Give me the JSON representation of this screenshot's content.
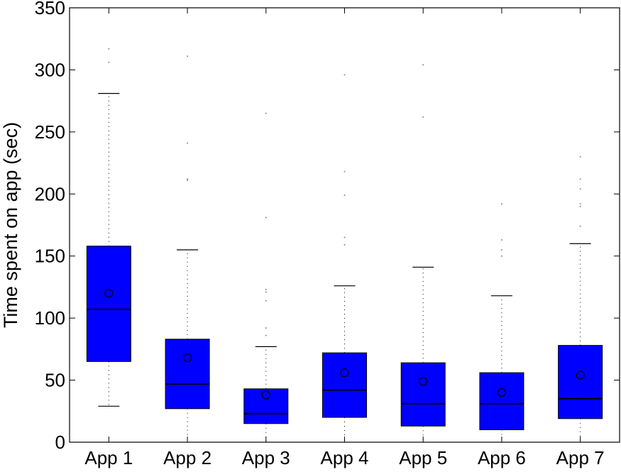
{
  "chart_data": {
    "type": "box",
    "title": "",
    "xlabel": "",
    "ylabel": "Time spent on app (sec)",
    "ylim": [
      0,
      350
    ],
    "yticks": [
      "0",
      "50",
      "100",
      "150",
      "200",
      "250",
      "300",
      "350"
    ],
    "categories": [
      "App 1",
      "App 2",
      "App 3",
      "App 4",
      "App 5",
      "App 6",
      "App 7"
    ],
    "grid": false,
    "box_color": "#0000ff",
    "boxes": [
      {
        "q1": 65,
        "median": 107,
        "q3": 158,
        "mean": 120,
        "whisker_low": 29,
        "whisker_high": 281,
        "outliers": [
          306,
          317
        ]
      },
      {
        "q1": 27,
        "median": 47,
        "q3": 83,
        "mean": 68,
        "whisker_low": 0,
        "whisker_high": 155,
        "outliers": [
          211,
          212,
          241,
          311
        ]
      },
      {
        "q1": 15,
        "median": 23,
        "q3": 43,
        "mean": 38,
        "whisker_low": 0,
        "whisker_high": 77,
        "outliers": [
          86,
          92,
          114,
          121,
          123,
          181,
          265
        ]
      },
      {
        "q1": 20,
        "median": 42,
        "q3": 72,
        "mean": 56,
        "whisker_low": 0,
        "whisker_high": 126,
        "outliers": [
          159,
          165,
          199,
          218,
          296
        ]
      },
      {
        "q1": 13,
        "median": 31,
        "q3": 64,
        "mean": 49,
        "whisker_low": 0,
        "whisker_high": 141,
        "outliers": [
          262,
          304
        ]
      },
      {
        "q1": 10,
        "median": 31,
        "q3": 56,
        "mean": 40,
        "whisker_low": 0,
        "whisker_high": 118,
        "outliers": [
          150,
          155,
          163,
          192
        ]
      },
      {
        "q1": 19,
        "median": 35,
        "q3": 78,
        "mean": 54,
        "whisker_low": 0,
        "whisker_high": 160,
        "outliers": [
          174,
          190,
          192,
          204,
          212,
          230
        ]
      }
    ]
  }
}
